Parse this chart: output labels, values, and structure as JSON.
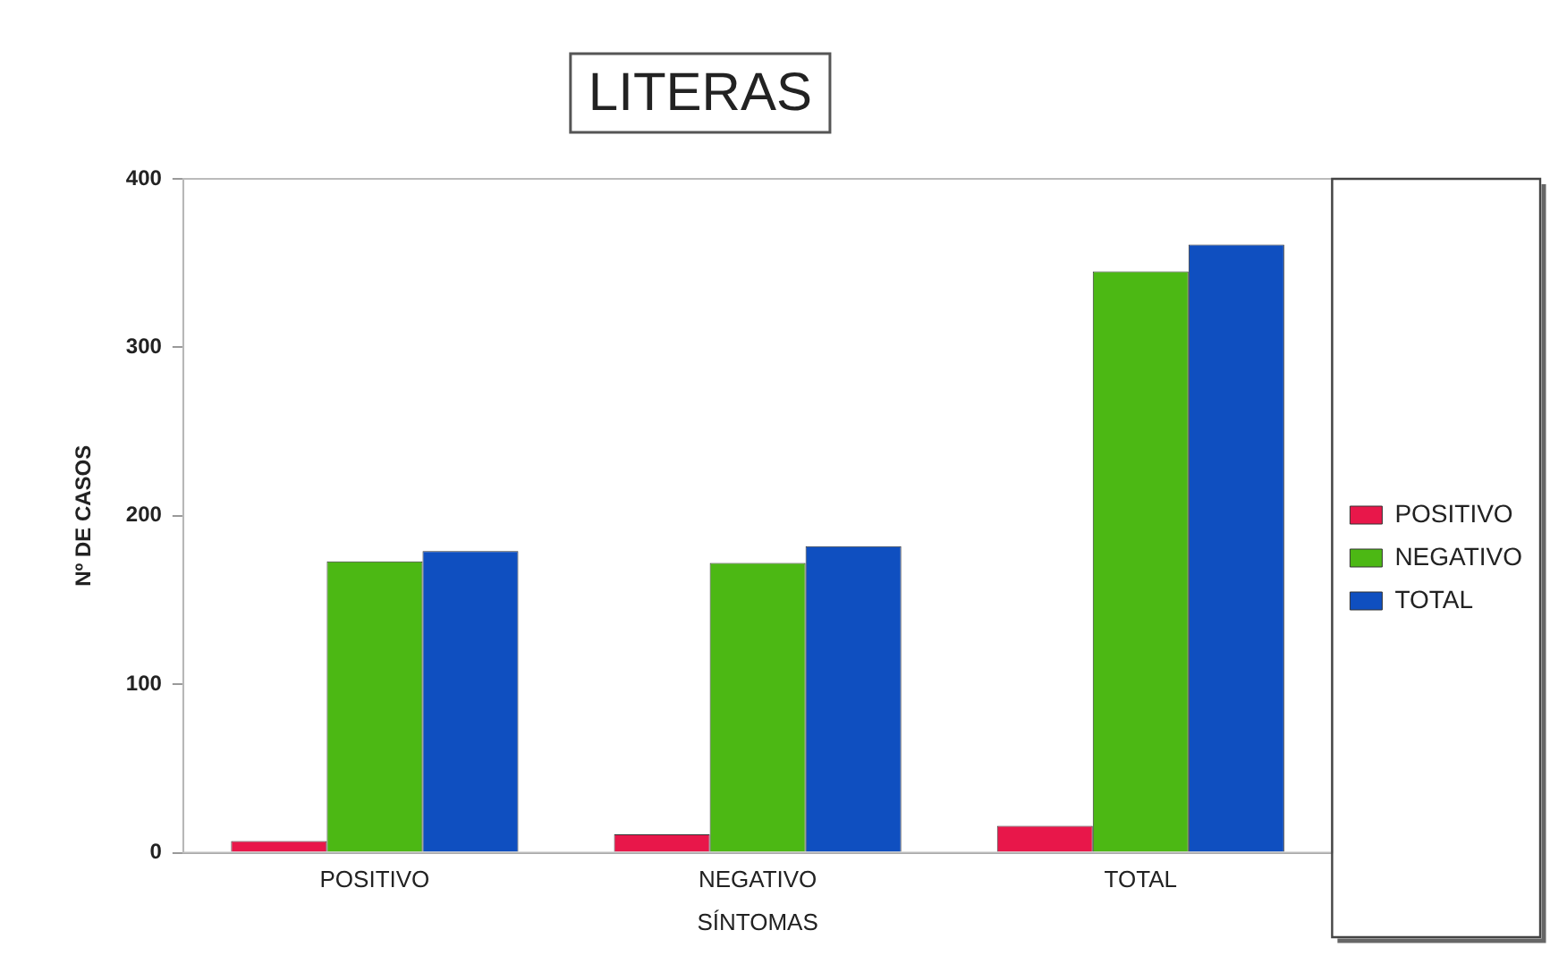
{
  "chart_data": {
    "type": "bar",
    "title": "LITERAS",
    "xlabel": "SÍNTOMAS",
    "ylabel": "Nº DE CASOS",
    "categories": [
      "POSITIVO",
      "NEGATIVO",
      "TOTAL"
    ],
    "series": [
      {
        "name": "POSITIVO",
        "color": "#e8174a",
        "values": [
          7,
          11,
          16
        ]
      },
      {
        "name": "NEGATIVO",
        "color": "#4cb814",
        "values": [
          173,
          172,
          345
        ]
      },
      {
        "name": "TOTAL",
        "color": "#0f4fc0",
        "values": [
          179,
          182,
          361
        ]
      }
    ],
    "ylim": [
      0,
      400
    ],
    "yticks": [
      0,
      100,
      200,
      300,
      400
    ],
    "grid": false,
    "legend": "right"
  }
}
